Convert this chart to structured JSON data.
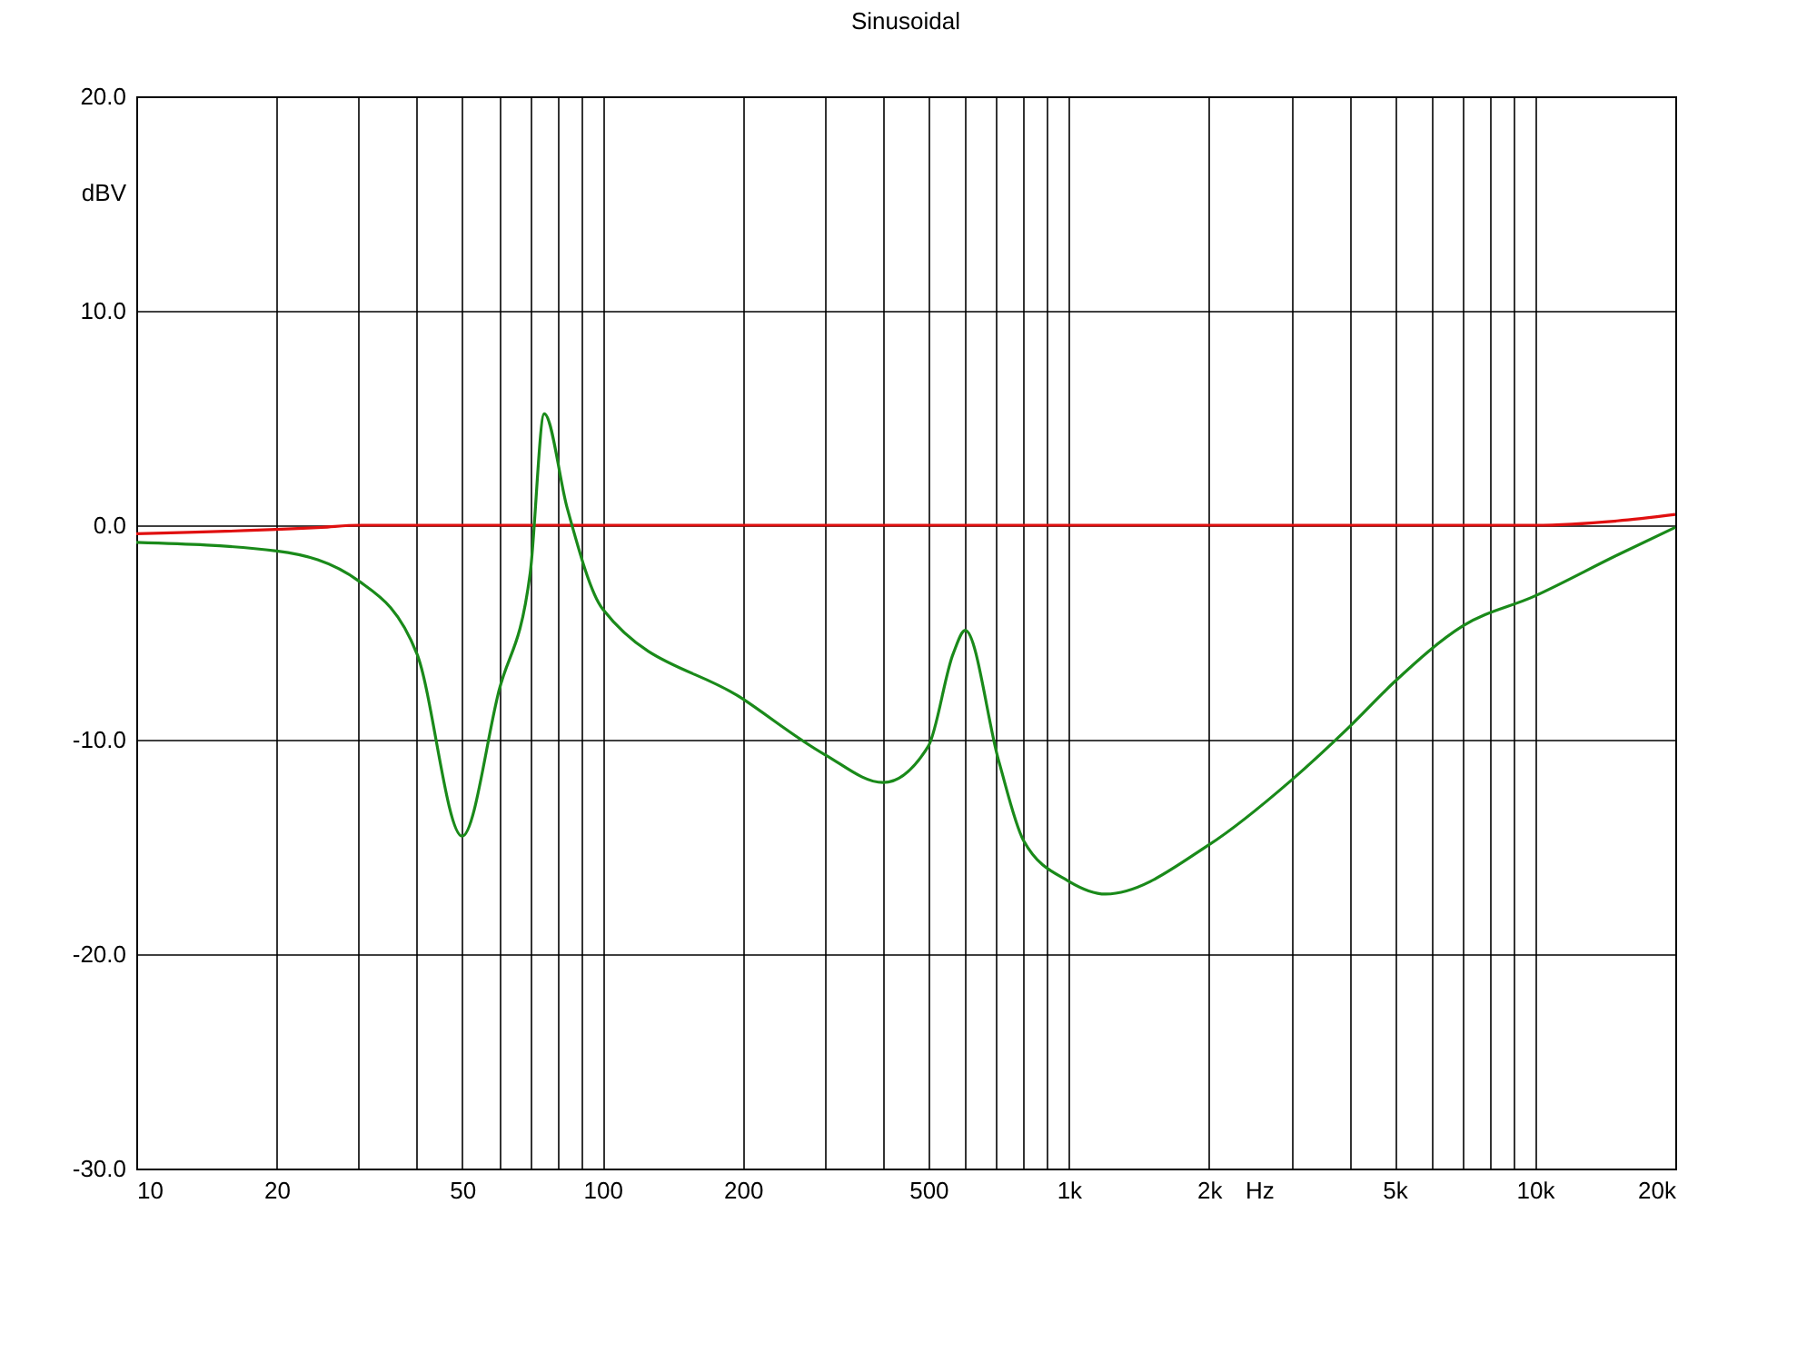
{
  "chart_data": {
    "type": "line",
    "title": "Sinusoidal",
    "xlabel": "Hz",
    "ylabel": "dBV",
    "log": "x",
    "grid": true,
    "xlim": [
      10,
      20000
    ],
    "ylim": [
      -30,
      20
    ],
    "xticks": [
      10,
      20,
      {
        "value": 30,
        "label": null
      },
      {
        "value": 40,
        "label": null
      },
      50,
      {
        "value": 60,
        "label": null
      },
      {
        "value": 70,
        "label": null
      },
      {
        "value": 80,
        "label": null
      },
      {
        "value": 90,
        "label": null
      },
      100,
      200,
      {
        "value": 300,
        "label": null
      },
      {
        "value": 400,
        "label": null
      },
      500,
      {
        "value": 600,
        "label": null
      },
      {
        "value": 700,
        "label": null
      },
      {
        "value": 800,
        "label": null
      },
      {
        "value": 900,
        "label": null
      },
      {
        "value": 1000,
        "label": "1k"
      },
      {
        "value": 2000,
        "label": "2k"
      },
      {
        "value": 3000,
        "label": null
      },
      {
        "value": 4000,
        "label": null
      },
      {
        "value": 5000,
        "label": "5k"
      },
      {
        "value": 6000,
        "label": null
      },
      {
        "value": 7000,
        "label": null
      },
      {
        "value": 8000,
        "label": null
      },
      {
        "value": 9000,
        "label": null
      },
      {
        "value": 10000,
        "label": "10k"
      },
      {
        "value": 20000,
        "label": "20k"
      }
    ],
    "yticks": [
      {
        "value": -30,
        "label": "-30.0"
      },
      {
        "value": -20,
        "label": "-20.0"
      },
      {
        "value": -10,
        "label": "-10.0"
      },
      {
        "value": 0,
        "label": "0.0"
      },
      {
        "value": 10,
        "label": "10.0"
      },
      {
        "value": 20,
        "label": "20.0"
      }
    ],
    "series": [
      {
        "color": "#e01010",
        "x": [
          10,
          25,
          30,
          1000,
          10000,
          15000,
          20000
        ],
        "values": [
          -0.4,
          -0.1,
          0,
          0,
          0,
          0.2,
          0.5
        ]
      },
      {
        "color": "#1a8a1a",
        "x": [
          10,
          20,
          30,
          40,
          50,
          60,
          70,
          75,
          84,
          100,
          200,
          300,
          400,
          500,
          565,
          600,
          708,
          800,
          1000,
          1200,
          2000,
          3000,
          4000,
          5000,
          7000,
          10000,
          15000,
          20000
        ],
        "values": [
          -0.8,
          -1.2,
          -2.6,
          -6,
          -14.5,
          -7.7,
          -2.2,
          5.2,
          0.8,
          -3.9,
          -8.1,
          -10.7,
          -12,
          -10.3,
          -6,
          -4.9,
          -11,
          -14.7,
          -16.6,
          -17.2,
          -14.9,
          -11.9,
          -9.4,
          -7.3,
          -4.7,
          -3.3,
          -1.4,
          -0.1
        ]
      }
    ]
  }
}
